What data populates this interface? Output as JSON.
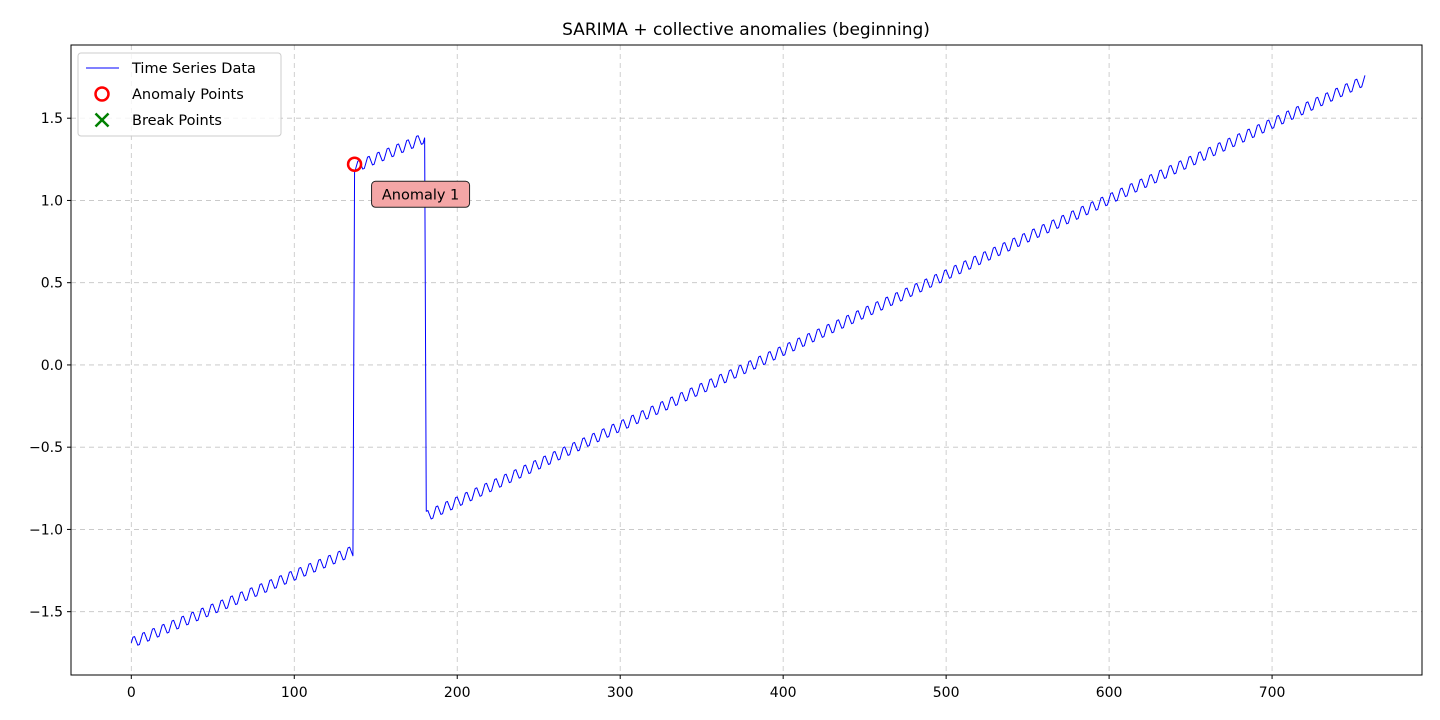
{
  "chart_data": {
    "type": "line",
    "title": "SARIMA + collective anomalies (beginning)",
    "xlabel": "",
    "ylabel": "",
    "xlim": [
      -37,
      792
    ],
    "ylim": [
      -1.885,
      1.945
    ],
    "x_ticks": [
      0,
      100,
      200,
      300,
      400,
      500,
      600,
      700
    ],
    "y_ticks": [
      -1.5,
      -1.0,
      -0.5,
      0.0,
      0.5,
      1.0,
      1.5
    ],
    "grid": true,
    "legend_placement": "upper-left",
    "series": [
      {
        "name": "Time Series Data",
        "color": "#0000ff",
        "n_points": 758,
        "segments": [
          {
            "x_start": 0,
            "x_end": 136,
            "y_start": -1.69,
            "y_end": -1.13
          },
          {
            "x_start": 137,
            "x_end": 180,
            "y_start": 1.2,
            "y_end": 1.38
          },
          {
            "x_start": 181,
            "x_end": 757,
            "y_start": -0.92,
            "y_end": 1.73
          }
        ],
        "seasonal_period": 6,
        "seasonal_amplitude": 0.035
      }
    ],
    "anomaly_points": [
      {
        "name": "Anomaly Points",
        "x": 137,
        "y": 1.22,
        "color": "#ff0000",
        "label": "Anomaly 1"
      }
    ],
    "break_points_legend": {
      "name": "Break Points",
      "color": "#008000"
    },
    "legend": [
      "Time Series Data",
      "Anomaly Points",
      "Break Points"
    ],
    "annotation": {
      "text": "Anomaly 1",
      "x": 137,
      "y": 1.22,
      "bg_color": "#f4a6a6"
    }
  }
}
